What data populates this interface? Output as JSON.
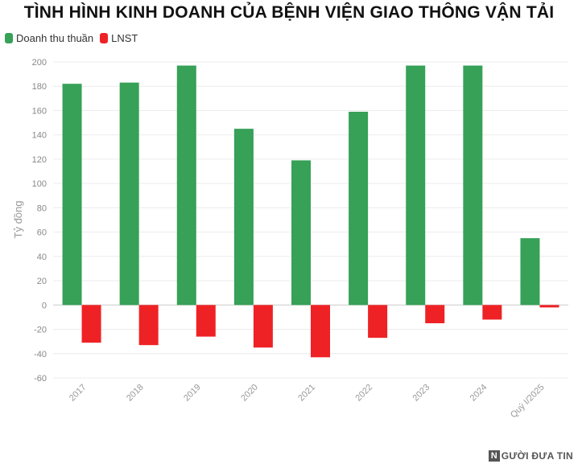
{
  "chart_data": {
    "type": "bar",
    "title": "TÌNH HÌNH KINH DOANH CỦA BỆNH VIỆN GIAO THÔNG VẬN TẢI",
    "ylabel": "Tỷ đồng",
    "xlabel": "",
    "categories": [
      "2017",
      "2018",
      "2019",
      "2020",
      "2021",
      "2022",
      "2023",
      "2024",
      "Quý I/2025"
    ],
    "series": [
      {
        "name": "Doanh thu thuần",
        "color": "#36a157",
        "values": [
          182,
          183,
          197,
          145,
          119,
          159,
          197,
          197,
          55
        ]
      },
      {
        "name": "LNST",
        "color": "#ee2225",
        "values": [
          -31,
          -33,
          -26,
          -35,
          -43,
          -27,
          -15,
          -12,
          -2
        ]
      }
    ],
    "ylim": [
      -60,
      200
    ],
    "yticks": [
      -60,
      -40,
      -20,
      0,
      20,
      40,
      60,
      80,
      100,
      120,
      140,
      160,
      180,
      200
    ],
    "grid": true,
    "legend_position": "top-left"
  },
  "watermark": {
    "box_letter": "N",
    "text": "GƯỜI ĐƯA TIN"
  }
}
